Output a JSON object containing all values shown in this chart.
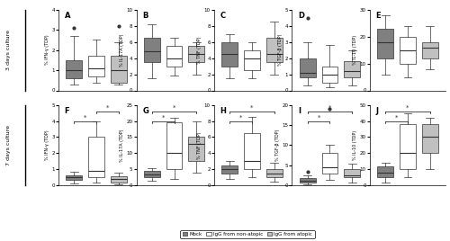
{
  "panels": {
    "A": {
      "ylabel": "% IFN-γ (TDP)",
      "ylim": [
        0,
        4
      ],
      "yticks": [
        0,
        1,
        2,
        3,
        4
      ],
      "boxes": [
        {
          "q1": 0.6,
          "med": 1.0,
          "q3": 1.5,
          "whislo": 0.3,
          "whishi": 2.7,
          "fliers": [
            3.1
          ]
        },
        {
          "q1": 0.7,
          "med": 1.1,
          "q3": 1.7,
          "whislo": 0.4,
          "whishi": 2.5,
          "fliers": []
        },
        {
          "q1": 0.4,
          "med": 1.0,
          "q3": 1.7,
          "whislo": 0.3,
          "whishi": 2.4,
          "fliers": [
            3.2
          ]
        }
      ],
      "sig_lines": [],
      "row": 0,
      "col": 0
    },
    "B": {
      "ylabel": "% IL-17A (TDP)",
      "ylim": [
        0,
        10
      ],
      "yticks": [
        0,
        2,
        4,
        6,
        8,
        10
      ],
      "boxes": [
        {
          "q1": 3.5,
          "med": 4.8,
          "q3": 6.5,
          "whislo": 1.5,
          "whishi": 8.2,
          "fliers": []
        },
        {
          "q1": 3.0,
          "med": 4.0,
          "q3": 5.5,
          "whislo": 1.8,
          "whishi": 6.5,
          "fliers": []
        },
        {
          "q1": 3.5,
          "med": 4.5,
          "q3": 5.5,
          "whislo": 2.0,
          "whishi": 6.0,
          "fliers": []
        }
      ],
      "sig_lines": [],
      "row": 0,
      "col": 1
    },
    "C": {
      "ylabel": "% TNF (TDP)",
      "ylim": [
        0,
        10
      ],
      "yticks": [
        0,
        2,
        4,
        6,
        8,
        10
      ],
      "boxes": [
        {
          "q1": 3.0,
          "med": 4.5,
          "q3": 6.0,
          "whislo": 1.5,
          "whishi": 7.0,
          "fliers": []
        },
        {
          "q1": 2.5,
          "med": 4.0,
          "q3": 5.0,
          "whislo": 1.5,
          "whishi": 6.0,
          "fliers": []
        },
        {
          "q1": 3.5,
          "med": 4.5,
          "q3": 6.5,
          "whislo": 2.0,
          "whishi": 8.5,
          "fliers": []
        }
      ],
      "sig_lines": [],
      "row": 0,
      "col": 2
    },
    "D": {
      "ylabel": "% TGF-β (TDP)",
      "ylim": [
        0,
        5
      ],
      "yticks": [
        0,
        1,
        2,
        3,
        4,
        5
      ],
      "boxes": [
        {
          "q1": 0.8,
          "med": 1.1,
          "q3": 2.0,
          "whislo": 0.3,
          "whishi": 3.0,
          "fliers": [
            4.5
          ]
        },
        {
          "q1": 0.5,
          "med": 1.0,
          "q3": 1.5,
          "whislo": 0.2,
          "whishi": 2.8,
          "fliers": []
        },
        {
          "q1": 0.8,
          "med": 1.2,
          "q3": 1.8,
          "whislo": 0.3,
          "whishi": 2.5,
          "fliers": []
        }
      ],
      "sig_lines": [],
      "row": 0,
      "col": 3
    },
    "E": {
      "ylabel": "% IL-10 (TDP)",
      "ylim": [
        0,
        30
      ],
      "yticks": [
        0,
        10,
        20,
        30
      ],
      "boxes": [
        {
          "q1": 12.0,
          "med": 18.0,
          "q3": 23.0,
          "whislo": 6.0,
          "whishi": 28.0,
          "fliers": []
        },
        {
          "q1": 10.0,
          "med": 15.0,
          "q3": 20.0,
          "whislo": 5.0,
          "whishi": 24.0,
          "fliers": []
        },
        {
          "q1": 12.0,
          "med": 16.0,
          "q3": 18.0,
          "whislo": 8.0,
          "whishi": 24.0,
          "fliers": []
        }
      ],
      "sig_lines": [],
      "row": 0,
      "col": 4
    },
    "F": {
      "ylabel": "% IFN-γ (TDP)",
      "ylim": [
        0,
        5
      ],
      "yticks": [
        0,
        1,
        2,
        3,
        4,
        5
      ],
      "boxes": [
        {
          "q1": 0.35,
          "med": 0.5,
          "q3": 0.65,
          "whislo": 0.15,
          "whishi": 0.85,
          "fliers": []
        },
        {
          "q1": 0.5,
          "med": 0.9,
          "q3": 3.0,
          "whislo": 0.2,
          "whishi": 4.0,
          "fliers": []
        },
        {
          "q1": 0.2,
          "med": 0.4,
          "q3": 0.6,
          "whislo": 0.05,
          "whishi": 0.8,
          "fliers": []
        }
      ],
      "sig_lines": [
        [
          0,
          1
        ],
        [
          1,
          2
        ]
      ],
      "row": 1,
      "col": 0
    },
    "G": {
      "ylabel": "% IL-17A (TDP)",
      "ylim": [
        0,
        25
      ],
      "yticks": [
        0,
        5,
        10,
        15,
        20,
        25
      ],
      "boxes": [
        {
          "q1": 2.5,
          "med": 3.5,
          "q3": 4.5,
          "whislo": 1.5,
          "whishi": 5.5,
          "fliers": []
        },
        {
          "q1": 5.0,
          "med": 10.0,
          "q3": 19.5,
          "whislo": 2.0,
          "whishi": 21.0,
          "fliers": []
        },
        {
          "q1": 7.5,
          "med": 13.0,
          "q3": 15.0,
          "whislo": 4.0,
          "whishi": 20.0,
          "fliers": []
        }
      ],
      "sig_lines": [
        [
          0,
          1
        ],
        [
          0,
          2
        ]
      ],
      "row": 1,
      "col": 1
    },
    "H": {
      "ylabel": "% TNF (TDP)",
      "ylim": [
        0,
        10
      ],
      "yticks": [
        0,
        2,
        4,
        6,
        8,
        10
      ],
      "boxes": [
        {
          "q1": 1.5,
          "med": 2.0,
          "q3": 2.5,
          "whislo": 0.8,
          "whishi": 3.0,
          "fliers": []
        },
        {
          "q1": 2.0,
          "med": 3.0,
          "q3": 6.5,
          "whislo": 1.0,
          "whishi": 8.5,
          "fliers": []
        },
        {
          "q1": 1.0,
          "med": 1.5,
          "q3": 2.0,
          "whislo": 0.5,
          "whishi": 2.8,
          "fliers": []
        }
      ],
      "sig_lines": [
        [
          0,
          1
        ],
        [
          0,
          2
        ]
      ],
      "row": 1,
      "col": 2
    },
    "I": {
      "ylabel": "% TGF-β (TDP)",
      "ylim": [
        0,
        20
      ],
      "yticks": [
        0,
        5,
        10,
        15,
        20
      ],
      "boxes": [
        {
          "q1": 0.8,
          "med": 1.2,
          "q3": 1.8,
          "whislo": 0.2,
          "whishi": 2.5,
          "fliers": [
            3.5
          ]
        },
        {
          "q1": 3.0,
          "med": 4.5,
          "q3": 8.0,
          "whislo": 1.5,
          "whishi": 10.0,
          "fliers": [
            19.0
          ]
        },
        {
          "q1": 2.0,
          "med": 2.5,
          "q3": 4.0,
          "whislo": 0.8,
          "whishi": 5.5,
          "fliers": []
        }
      ],
      "sig_lines": [
        [
          0,
          1
        ],
        [
          0,
          2
        ]
      ],
      "row": 1,
      "col": 3
    },
    "J": {
      "ylabel": "% IL-10 (TDP)",
      "ylim": [
        0,
        50
      ],
      "yticks": [
        0,
        10,
        20,
        30,
        40,
        50
      ],
      "boxes": [
        {
          "q1": 5.0,
          "med": 8.0,
          "q3": 12.0,
          "whislo": 2.0,
          "whishi": 14.0,
          "fliers": []
        },
        {
          "q1": 10.0,
          "med": 20.0,
          "q3": 38.0,
          "whislo": 5.0,
          "whishi": 45.0,
          "fliers": []
        },
        {
          "q1": 20.0,
          "med": 30.0,
          "q3": 38.0,
          "whislo": 10.0,
          "whishi": 42.0,
          "fliers": []
        }
      ],
      "sig_lines": [
        [
          0,
          1
        ],
        [
          0,
          2
        ]
      ],
      "row": 1,
      "col": 4
    }
  },
  "colors": [
    "#808080",
    "#ffffff",
    "#c0c0c0"
  ],
  "edge_color": "#333333",
  "legend_labels": [
    "Mock",
    "IgG from non-atopic",
    "IgG from atopic"
  ],
  "row_labels": [
    "3 days culture",
    "7 days culture"
  ],
  "panel_order": [
    "A",
    "B",
    "C",
    "D",
    "E",
    "F",
    "G",
    "H",
    "I",
    "J"
  ]
}
